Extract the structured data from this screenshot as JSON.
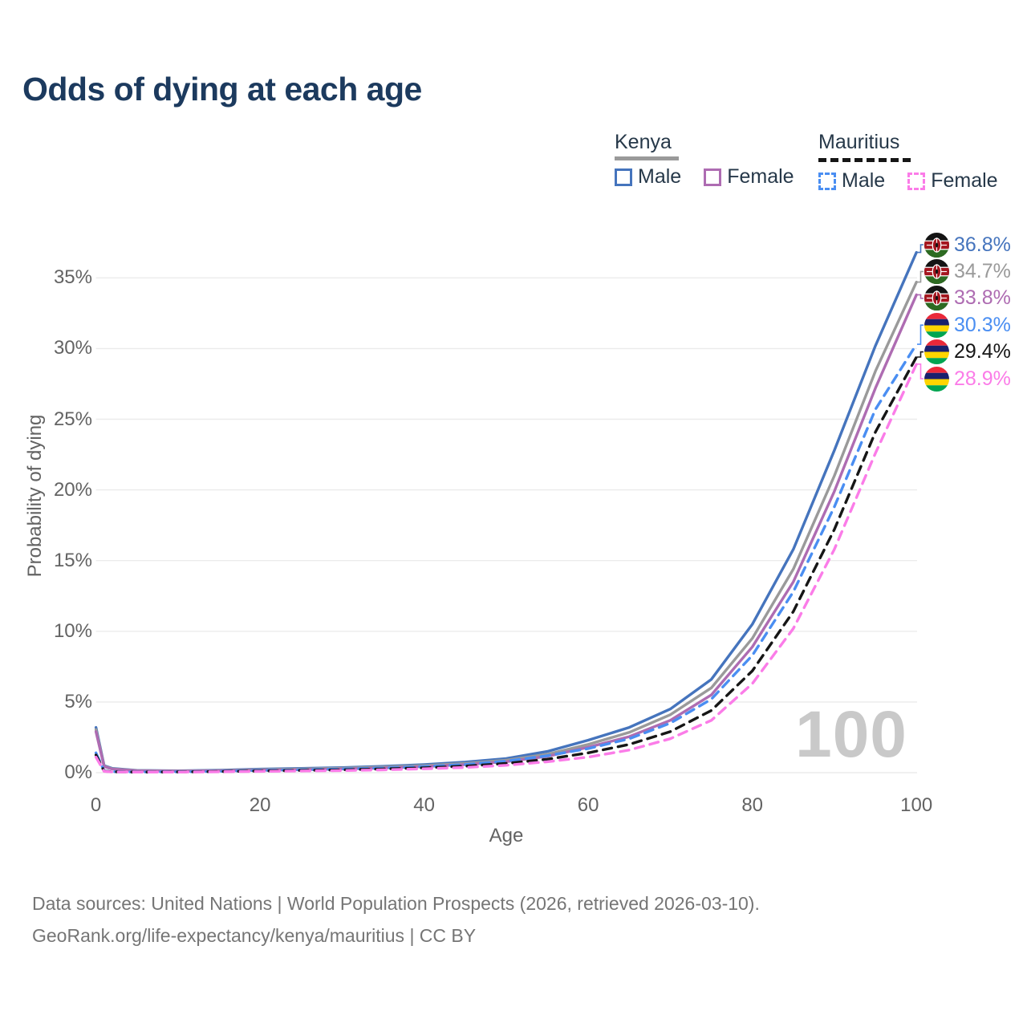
{
  "title": "Odds of dying at each age",
  "legend": {
    "groups": [
      {
        "label": "Kenya",
        "line_style": "solid",
        "underline_color": "#9a9a9a",
        "items": [
          {
            "label": "Male",
            "color": "#4574bd",
            "dashed": false
          },
          {
            "label": "Female",
            "color": "#ae6cb2",
            "dashed": false
          }
        ]
      },
      {
        "label": "Mauritius",
        "line_style": "dashed",
        "underline_color": "#161616",
        "items": [
          {
            "label": "Male",
            "color": "#4a8ef2",
            "dashed": true
          },
          {
            "label": "Female",
            "color": "#fb7ce8",
            "dashed": true
          }
        ]
      }
    ]
  },
  "chart_data": {
    "type": "line",
    "title": "Odds of dying at each age",
    "xlabel": "Age",
    "ylabel": "Probability of dying",
    "x_ticks": [
      0,
      20,
      40,
      60,
      80,
      100
    ],
    "y_ticks": [
      "0%",
      "5%",
      "10%",
      "15%",
      "20%",
      "25%",
      "30%",
      "35%"
    ],
    "y_tick_values": [
      0,
      5,
      10,
      15,
      20,
      25,
      30,
      35
    ],
    "xlim": [
      0,
      100
    ],
    "ylim": [
      0,
      38
    ],
    "grid": "horizontal",
    "legend_position": "top-right",
    "watermark": "100",
    "x": [
      0,
      1,
      2,
      5,
      10,
      15,
      20,
      25,
      30,
      35,
      40,
      45,
      50,
      55,
      60,
      65,
      70,
      75,
      80,
      85,
      90,
      95,
      100
    ],
    "series": [
      {
        "name": "kenya-male",
        "country": "Kenya",
        "sex": "Male",
        "color": "#4574bd",
        "dashed": false,
        "flag": "kenya",
        "end_label": "36.8%",
        "values": [
          3.2,
          0.5,
          0.3,
          0.16,
          0.13,
          0.17,
          0.25,
          0.3,
          0.36,
          0.45,
          0.57,
          0.75,
          1.0,
          1.5,
          2.3,
          3.2,
          4.5,
          6.6,
          10.5,
          15.8,
          22.8,
          30.2,
          36.8
        ]
      },
      {
        "name": "kenya-both-sexes",
        "country": "Kenya",
        "sex": "Both",
        "color": "#9a9a9a",
        "dashed": false,
        "flag": "kenya",
        "end_label": "34.7%",
        "values": [
          3.05,
          0.46,
          0.27,
          0.15,
          0.12,
          0.15,
          0.21,
          0.26,
          0.31,
          0.39,
          0.5,
          0.65,
          0.88,
          1.3,
          2.0,
          2.85,
          4.1,
          6.0,
          9.5,
          14.4,
          21.0,
          28.4,
          34.7
        ]
      },
      {
        "name": "kenya-female",
        "country": "Kenya",
        "sex": "Female",
        "color": "#ae6cb2",
        "dashed": false,
        "flag": "kenya",
        "end_label": "33.8%",
        "values": [
          2.9,
          0.43,
          0.25,
          0.13,
          0.1,
          0.13,
          0.17,
          0.21,
          0.26,
          0.33,
          0.43,
          0.57,
          0.78,
          1.15,
          1.8,
          2.55,
          3.7,
          5.5,
          8.9,
          13.5,
          19.9,
          27.2,
          33.8
        ]
      },
      {
        "name": "mauritius-male",
        "country": "Mauritius",
        "sex": "Male",
        "color": "#4a8ef2",
        "dashed": true,
        "flag": "mauritius",
        "end_label": "30.3%",
        "values": [
          1.4,
          0.12,
          0.07,
          0.05,
          0.06,
          0.09,
          0.16,
          0.21,
          0.26,
          0.33,
          0.43,
          0.58,
          0.82,
          1.2,
          1.7,
          2.4,
          3.5,
          5.2,
          8.3,
          12.8,
          18.8,
          25.7,
          30.3
        ]
      },
      {
        "name": "mauritius-both-sexes",
        "country": "Mauritius",
        "sex": "Both",
        "color": "#161616",
        "dashed": true,
        "flag": "mauritius",
        "end_label": "29.4%",
        "values": [
          1.25,
          0.1,
          0.06,
          0.04,
          0.05,
          0.08,
          0.12,
          0.16,
          0.2,
          0.26,
          0.34,
          0.46,
          0.65,
          0.95,
          1.4,
          2.0,
          2.9,
          4.4,
          7.2,
          11.4,
          17.2,
          24.1,
          29.4
        ]
      },
      {
        "name": "mauritius-female",
        "country": "Mauritius",
        "sex": "Female",
        "color": "#fb7ce8",
        "dashed": true,
        "flag": "mauritius",
        "end_label": "28.9%",
        "values": [
          1.1,
          0.09,
          0.05,
          0.04,
          0.04,
          0.06,
          0.09,
          0.12,
          0.15,
          0.2,
          0.27,
          0.37,
          0.52,
          0.77,
          1.1,
          1.6,
          2.4,
          3.7,
          6.3,
          10.2,
          15.8,
          22.6,
          28.9
        ]
      }
    ]
  },
  "footer": {
    "line1": "Data sources: United Nations | World Population Prospects (2026, retrieved 2026-03-10).",
    "line2": "GeoRank.org/life-expectancy/kenya/mauritius | CC BY"
  }
}
